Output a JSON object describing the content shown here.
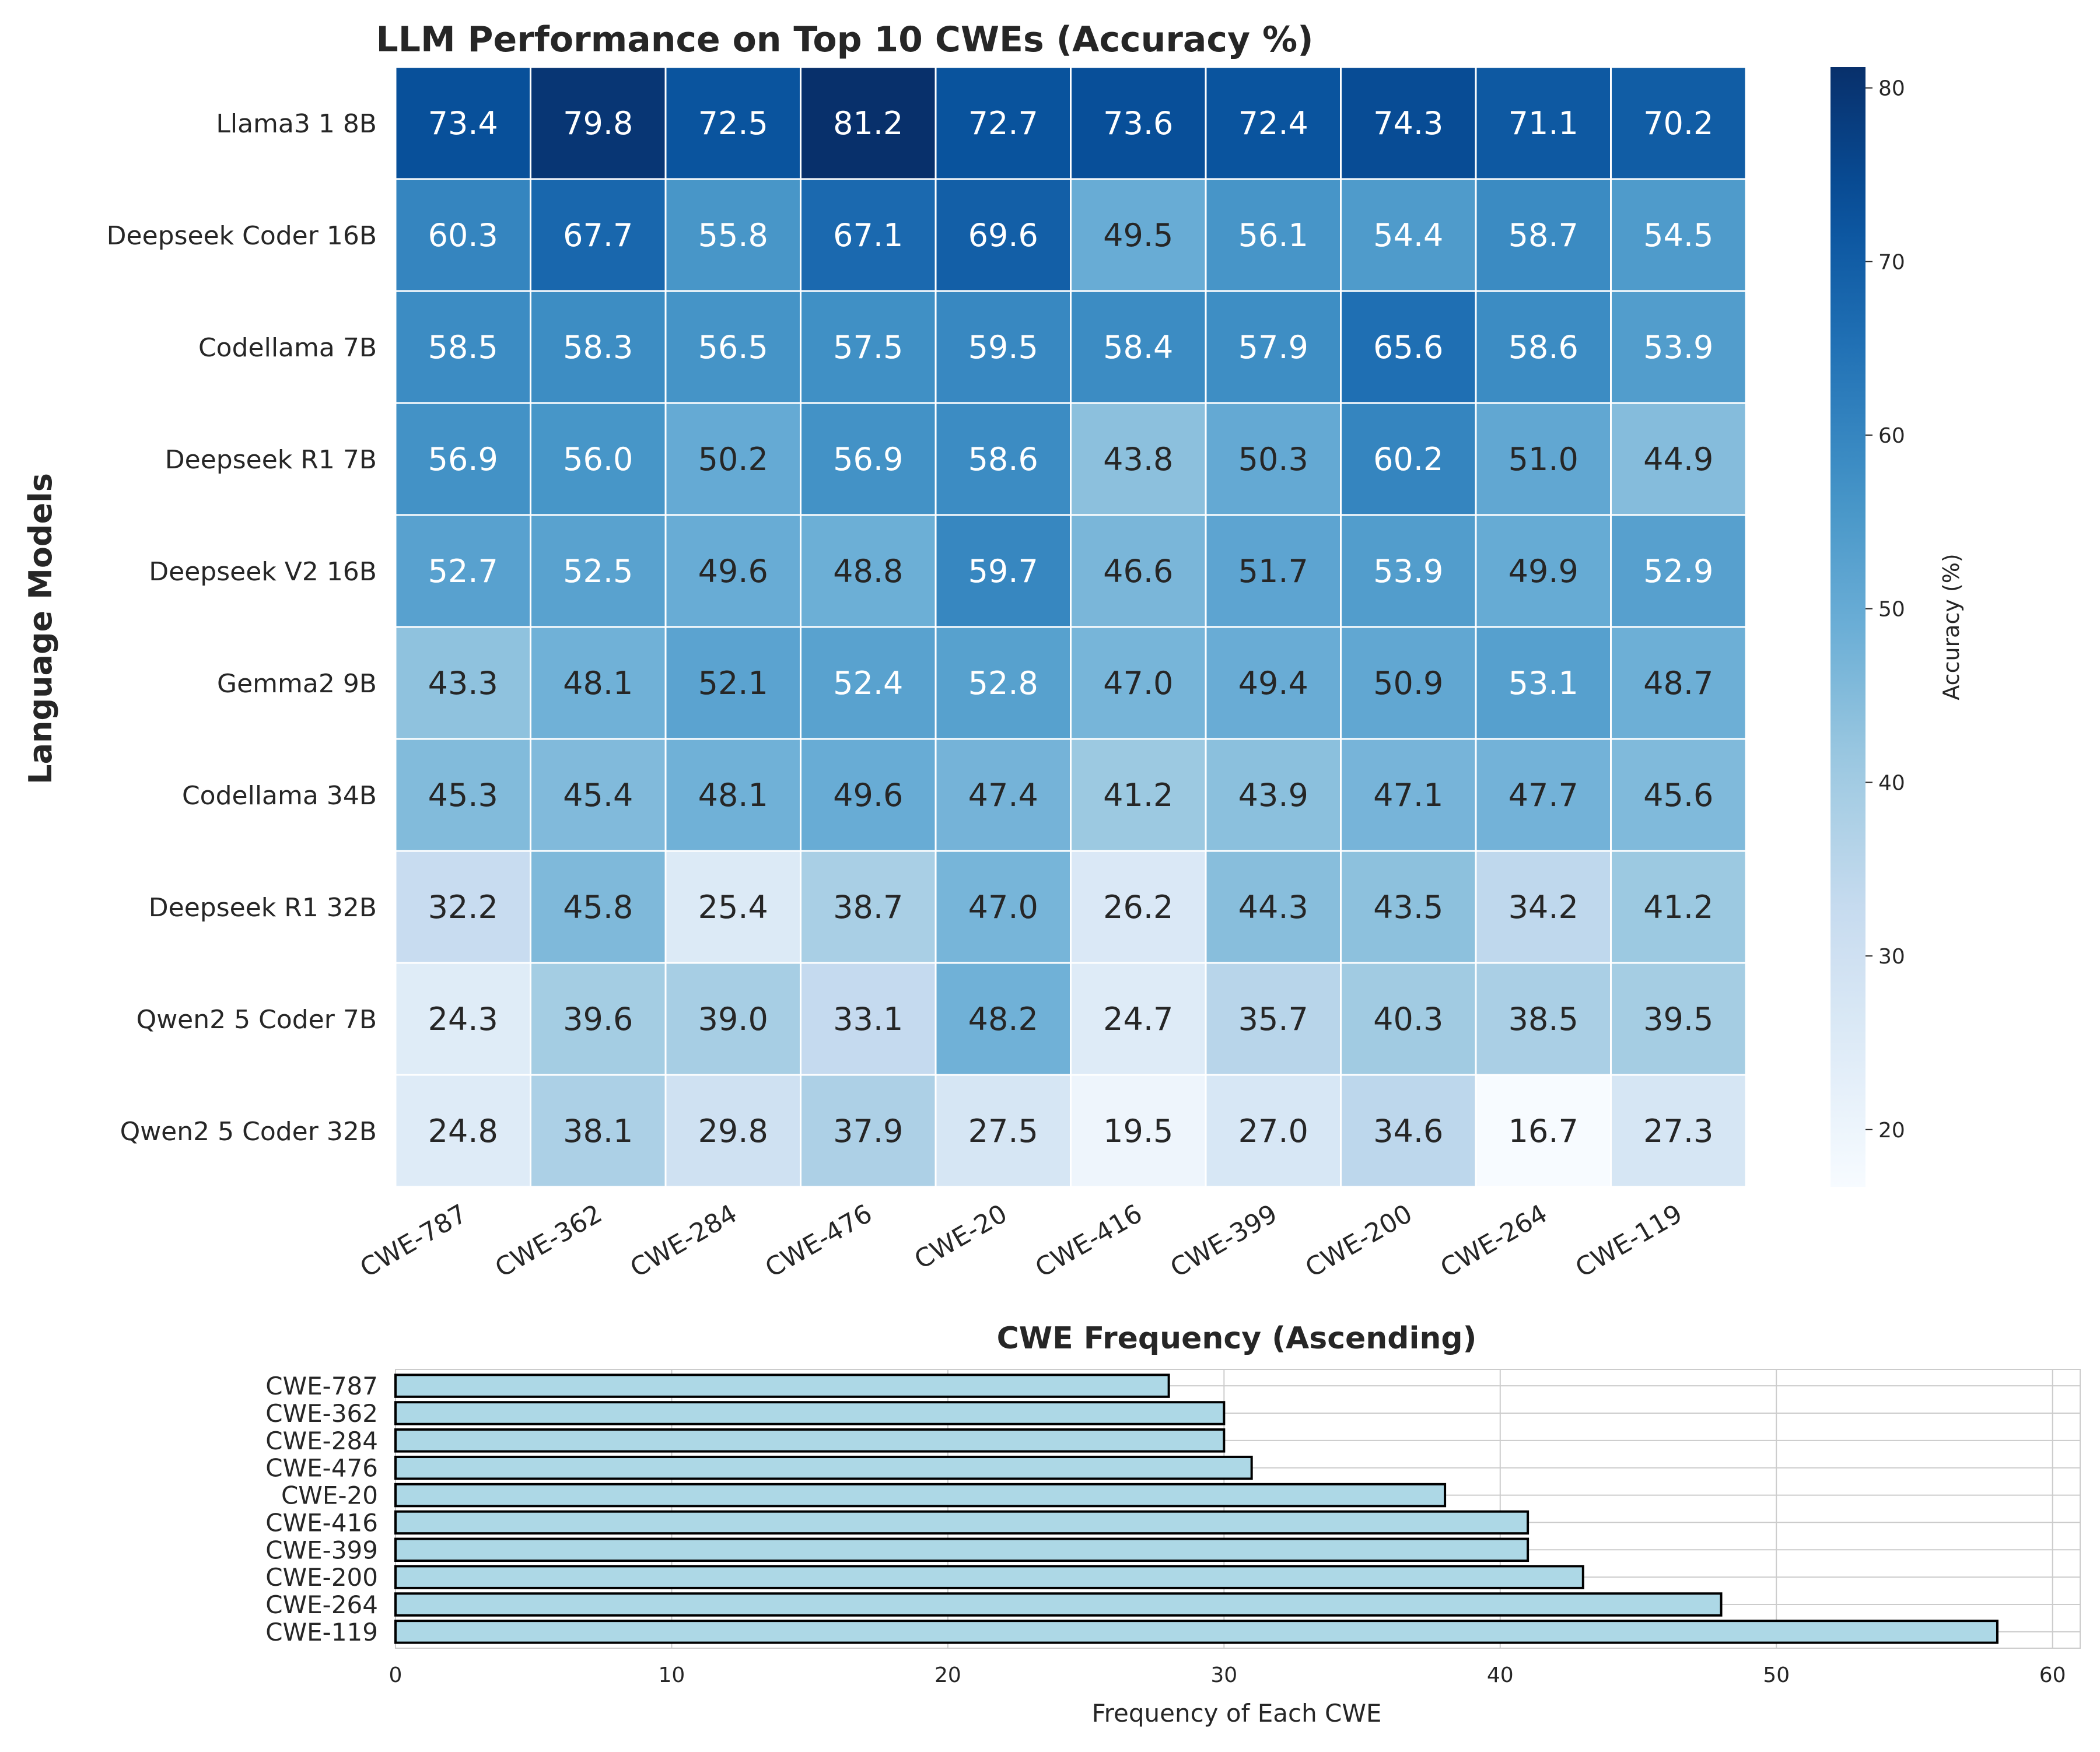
{
  "chart_data": [
    {
      "type": "heatmap",
      "title": "LLM Performance on Top 10 CWEs (Accuracy %)",
      "xlabel": "",
      "ylabel": "Language Models",
      "rows": [
        "Llama3 1 8B",
        "Deepseek Coder 16B",
        "Codellama 7B",
        "Deepseek R1 7B",
        "Deepseek V2 16B",
        "Gemma2 9B",
        "Codellama 34B",
        "Deepseek R1 32B",
        "Qwen2 5 Coder 7B",
        "Qwen2 5 Coder 32B"
      ],
      "columns": [
        "CWE-787",
        "CWE-362",
        "CWE-284",
        "CWE-476",
        "CWE-20",
        "CWE-416",
        "CWE-399",
        "CWE-200",
        "CWE-264",
        "CWE-119"
      ],
      "values": [
        [
          73.4,
          79.8,
          72.5,
          81.2,
          72.7,
          73.6,
          72.4,
          74.3,
          71.1,
          70.2
        ],
        [
          60.3,
          67.7,
          55.8,
          67.1,
          69.6,
          49.5,
          56.1,
          54.4,
          58.7,
          54.5
        ],
        [
          58.5,
          58.3,
          56.5,
          57.5,
          59.5,
          58.4,
          57.9,
          65.6,
          58.6,
          53.9
        ],
        [
          56.9,
          56.0,
          50.2,
          56.9,
          58.6,
          43.8,
          50.3,
          60.2,
          51.0,
          44.9
        ],
        [
          52.7,
          52.5,
          49.6,
          48.8,
          59.7,
          46.6,
          51.7,
          53.9,
          49.9,
          52.9
        ],
        [
          43.3,
          48.1,
          52.1,
          52.4,
          52.8,
          47.0,
          49.4,
          50.9,
          53.1,
          48.7
        ],
        [
          45.3,
          45.4,
          48.1,
          49.6,
          47.4,
          41.2,
          43.9,
          47.1,
          47.7,
          45.6
        ],
        [
          32.2,
          45.8,
          25.4,
          38.7,
          47.0,
          26.2,
          44.3,
          43.5,
          34.2,
          41.2
        ],
        [
          24.3,
          39.6,
          39.0,
          33.1,
          48.2,
          24.7,
          35.7,
          40.3,
          38.5,
          39.5
        ],
        [
          24.8,
          38.1,
          29.8,
          37.9,
          27.5,
          19.5,
          27.0,
          34.6,
          16.7,
          27.3
        ]
      ],
      "colormap": "Blues",
      "colorbar": {
        "label": "Accuracy (%)",
        "ticks": [
          20,
          30,
          40,
          50,
          60,
          70,
          80
        ],
        "range": [
          16.7,
          81.2
        ]
      }
    },
    {
      "type": "bar",
      "orientation": "horizontal",
      "title": "CWE Frequency (Ascending)",
      "xlabel": "Frequency of Each CWE",
      "ylabel": "",
      "categories": [
        "CWE-787",
        "CWE-362",
        "CWE-284",
        "CWE-476",
        "CWE-20",
        "CWE-416",
        "CWE-399",
        "CWE-200",
        "CWE-264",
        "CWE-119"
      ],
      "values": [
        28,
        30,
        30,
        31,
        38,
        41,
        41,
        43,
        48,
        58
      ],
      "xlim": [
        0,
        61
      ],
      "xticks": [
        0,
        10,
        20,
        30,
        40,
        50,
        60
      ],
      "grid": true,
      "bar_color": "#add8e6",
      "edge_color": "#000000"
    }
  ]
}
